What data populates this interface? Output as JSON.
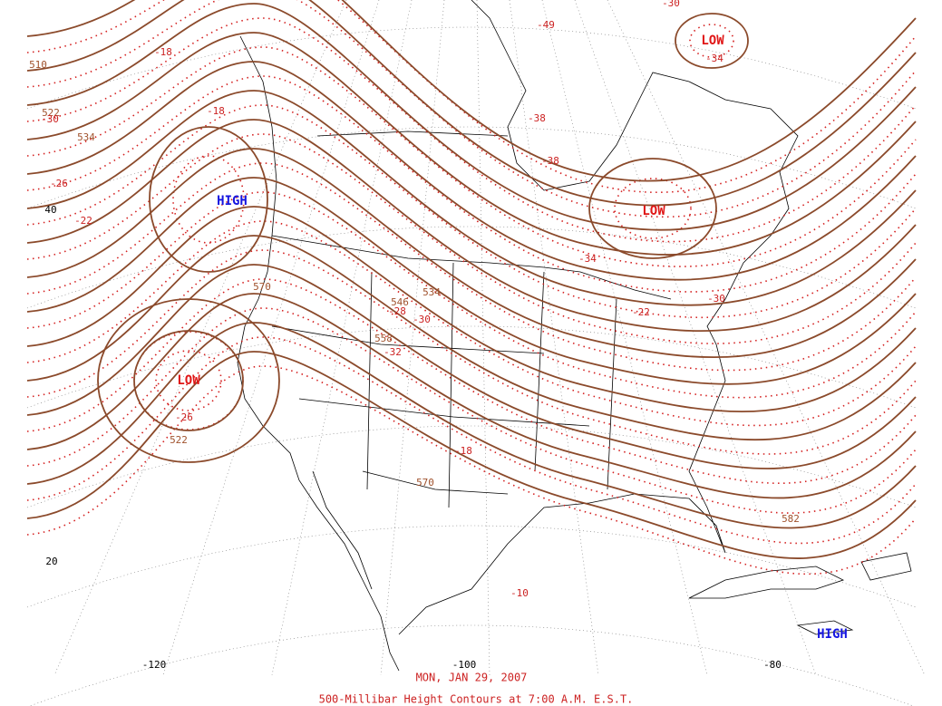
{
  "contour_labels": [
    "510",
    "522",
    "-30",
    "534",
    "-26",
    "-22",
    "-18",
    "-18",
    "-26",
    "522",
    "570",
    "546",
    "534",
    "-28",
    "-30",
    "558",
    "-32",
    "-18",
    "570",
    "-10",
    "582",
    "-34",
    "-30",
    "-49",
    "-38",
    "-38",
    "-34",
    "-22",
    "-30"
  ],
  "pressure_centers": [
    "HIGH",
    "LOW",
    "LOW",
    "LOW",
    "HIGH"
  ],
  "latitude_labels": [
    "40",
    "20"
  ],
  "longitude_labels": [
    "-120",
    "-100",
    "-80"
  ],
  "footer": {
    "date": "MON, JAN 29, 2007",
    "caption": "500-Millibar Height Contours at 7:00 A.M. E.S.T."
  }
}
